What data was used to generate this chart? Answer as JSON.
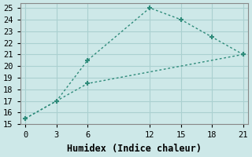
{
  "line1_x": [
    0,
    3,
    6,
    12,
    15,
    18,
    21
  ],
  "line1_y": [
    15.5,
    17,
    20.5,
    25,
    24,
    22.5,
    21
  ],
  "line2_x": [
    0,
    3,
    6,
    21
  ],
  "line2_y": [
    15.5,
    17,
    18.5,
    21
  ],
  "line_color": "#2e8b7a",
  "marker": "+",
  "marker_size": 5,
  "marker_lw": 1.5,
  "xlabel": "Humidex (Indice chaleur)",
  "xlim": [
    -0.5,
    21.5
  ],
  "ylim": [
    15,
    25.4
  ],
  "xticks": [
    0,
    3,
    6,
    12,
    15,
    18,
    21
  ],
  "yticks": [
    15,
    16,
    17,
    18,
    19,
    20,
    21,
    22,
    23,
    24,
    25
  ],
  "bg_color": "#cde8e8",
  "grid_color": "#aad0d0",
  "tick_fontsize": 7.5,
  "xlabel_fontsize": 8.5
}
